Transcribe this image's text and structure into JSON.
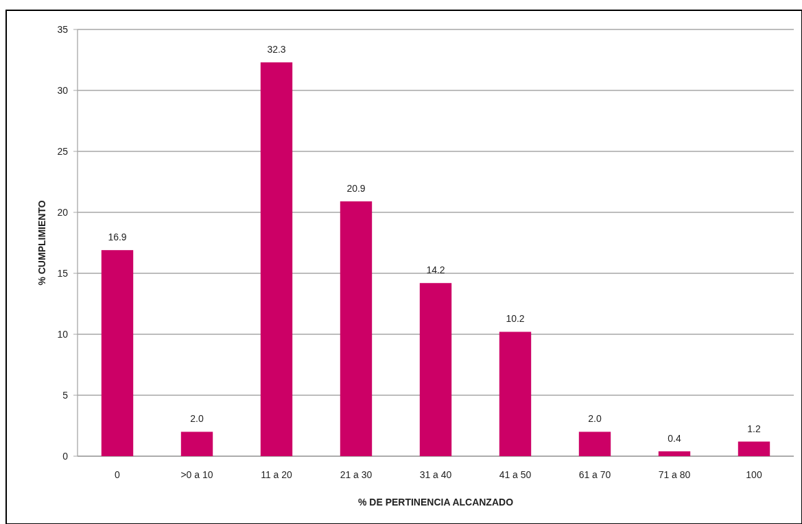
{
  "chart_data": {
    "type": "bar",
    "xlabel": "% DE PERTINENCIA  ALCANZADO",
    "ylabel": "% CUMPLIMIENTO",
    "categories": [
      "0",
      ">0 a 10",
      "11 a 20",
      "21 a 30",
      "31 a 40",
      "41 a 50",
      "61 a 70",
      "71 a 80",
      "100"
    ],
    "values": [
      16.9,
      2.0,
      32.3,
      20.9,
      14.2,
      10.2,
      2.0,
      0.4,
      1.2
    ],
    "value_labels": [
      "16.9",
      "2.0",
      "32.3",
      "20.9",
      "14.2",
      "10.2",
      "2.0",
      "0.4",
      "1.2"
    ],
    "color": "#cc0066",
    "ylim": [
      0,
      35
    ],
    "yticks": [
      0,
      5,
      10,
      15,
      20,
      25,
      30,
      35
    ],
    "grid": "y"
  }
}
